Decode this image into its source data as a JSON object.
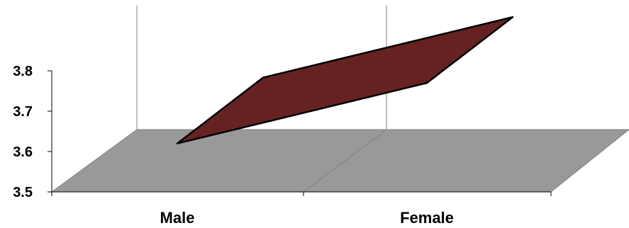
{
  "chart_data": {
    "type": "area",
    "style": "3d",
    "categories": [
      "Male",
      "Female"
    ],
    "series": [
      {
        "values": [
          3.62,
          3.77
        ]
      }
    ],
    "ylim": [
      3.5,
      3.8
    ],
    "yticks": [
      "3.5",
      "3.6",
      "3.7",
      "3.8"
    ],
    "grid": true,
    "colors": {
      "area_fill": "#662222",
      "floor": "#999999",
      "gridline": "#808080"
    }
  }
}
